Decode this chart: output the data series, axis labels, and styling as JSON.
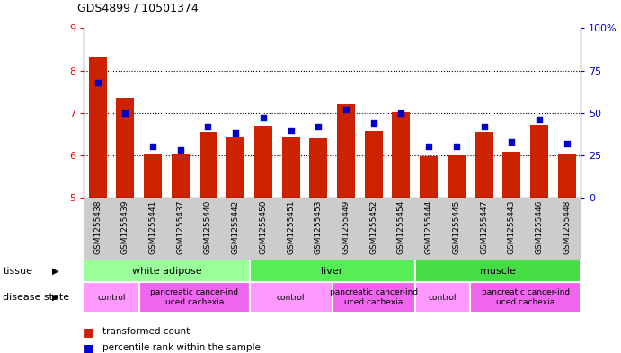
{
  "title": "GDS4899 / 10501374",
  "samples": [
    "GSM1255438",
    "GSM1255439",
    "GSM1255441",
    "GSM1255437",
    "GSM1255440",
    "GSM1255442",
    "GSM1255450",
    "GSM1255451",
    "GSM1255453",
    "GSM1255449",
    "GSM1255452",
    "GSM1255454",
    "GSM1255444",
    "GSM1255445",
    "GSM1255447",
    "GSM1255443",
    "GSM1255446",
    "GSM1255448"
  ],
  "bar_values": [
    8.3,
    7.35,
    6.05,
    6.02,
    6.55,
    6.45,
    6.7,
    6.45,
    6.4,
    7.2,
    6.58,
    7.02,
    5.98,
    6.0,
    6.55,
    6.08,
    6.72,
    6.03
  ],
  "percentile_values": [
    68,
    50,
    30,
    28,
    42,
    38,
    47,
    40,
    42,
    52,
    44,
    50,
    30,
    30,
    42,
    33,
    46,
    32
  ],
  "ylim_left": [
    5,
    9
  ],
  "ylim_right": [
    0,
    100
  ],
  "yticks_left": [
    5,
    6,
    7,
    8,
    9
  ],
  "yticks_right": [
    0,
    25,
    50,
    75,
    100
  ],
  "right_tick_labels": [
    "0",
    "25",
    "50",
    "75",
    "100%"
  ],
  "bar_color": "#CC2200",
  "dot_color": "#0000CC",
  "tissue_groups": [
    {
      "label": "white adipose",
      "start": 0,
      "end": 6,
      "color": "#99FF99"
    },
    {
      "label": "liver",
      "start": 6,
      "end": 12,
      "color": "#55EE55"
    },
    {
      "label": "muscle",
      "start": 12,
      "end": 18,
      "color": "#44DD44"
    }
  ],
  "disease_groups": [
    {
      "label": "control",
      "start": 0,
      "end": 2,
      "color": "#FF99FF"
    },
    {
      "label": "pancreatic cancer-ind\nuced cachexia",
      "start": 2,
      "end": 6,
      "color": "#EE66EE"
    },
    {
      "label": "control",
      "start": 6,
      "end": 9,
      "color": "#FF99FF"
    },
    {
      "label": "pancreatic cancer-ind\nuced cachexia",
      "start": 9,
      "end": 12,
      "color": "#EE66EE"
    },
    {
      "label": "control",
      "start": 12,
      "end": 14,
      "color": "#FF99FF"
    },
    {
      "label": "pancreatic cancer-ind\nuced cachexia",
      "start": 14,
      "end": 18,
      "color": "#EE66EE"
    }
  ],
  "right_axis_color": "#0000CC",
  "tissue_label": "tissue",
  "disease_label": "disease state"
}
